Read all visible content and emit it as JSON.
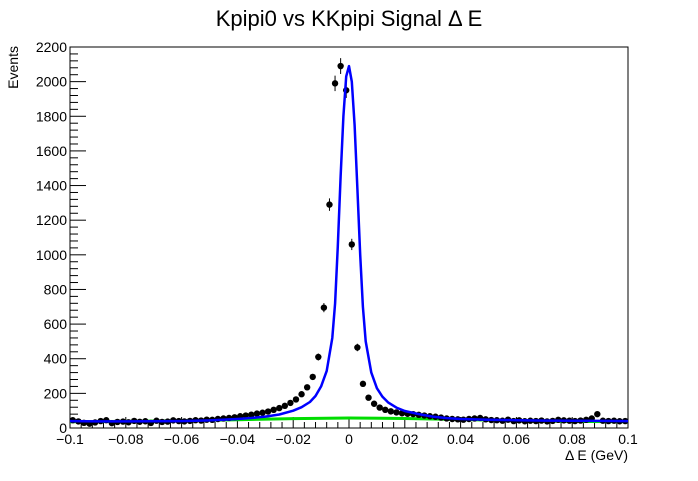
{
  "chart_data": {
    "type": "scatter",
    "title": "Kpipi0 vs KKpipi Signal Δ E",
    "xlabel": "Δ E (GeV)",
    "ylabel": "Events",
    "xlim": [
      -0.1,
      0.1
    ],
    "ylim": [
      0,
      2200
    ],
    "x_ticks": [
      -0.1,
      -0.08,
      -0.06,
      -0.04,
      -0.02,
      0,
      0.02,
      0.04,
      0.06,
      0.08,
      0.1
    ],
    "x_tick_labels": [
      "−0.1",
      "−0.08",
      "−0.06",
      "−0.04",
      "−0.02",
      "0",
      "0.02",
      "0.04",
      "0.06",
      "0.08",
      "0.1"
    ],
    "y_ticks": [
      0,
      200,
      400,
      600,
      800,
      1000,
      1200,
      1400,
      1600,
      1800,
      2000,
      2200
    ],
    "y_tick_labels": [
      "0",
      "200",
      "400",
      "600",
      "800",
      "1000",
      "1200",
      "1400",
      "1600",
      "1800",
      "2000",
      "2200"
    ],
    "grid": false,
    "legend": "none",
    "series": [
      {
        "kind": "points_with_errors",
        "color": "#000000",
        "x": [
          -0.099,
          -0.097,
          -0.095,
          -0.093,
          -0.091,
          -0.089,
          -0.087,
          -0.085,
          -0.083,
          -0.081,
          -0.079,
          -0.077,
          -0.075,
          -0.073,
          -0.071,
          -0.069,
          -0.067,
          -0.065,
          -0.063,
          -0.061,
          -0.059,
          -0.057,
          -0.055,
          -0.053,
          -0.051,
          -0.049,
          -0.047,
          -0.045,
          -0.043,
          -0.041,
          -0.039,
          -0.037,
          -0.035,
          -0.033,
          -0.031,
          -0.029,
          -0.027,
          -0.025,
          -0.023,
          -0.021,
          -0.019,
          -0.017,
          -0.015,
          -0.013,
          -0.011,
          -0.009,
          -0.007,
          -0.005,
          -0.003,
          -0.001,
          0.001,
          0.003,
          0.005,
          0.007,
          0.009,
          0.011,
          0.013,
          0.015,
          0.017,
          0.019,
          0.021,
          0.023,
          0.025,
          0.027,
          0.029,
          0.031,
          0.033,
          0.035,
          0.037,
          0.039,
          0.041,
          0.043,
          0.045,
          0.047,
          0.049,
          0.051,
          0.053,
          0.055,
          0.057,
          0.059,
          0.061,
          0.063,
          0.065,
          0.067,
          0.069,
          0.071,
          0.073,
          0.075,
          0.077,
          0.079,
          0.081,
          0.083,
          0.085,
          0.087,
          0.089,
          0.091,
          0.093,
          0.095,
          0.097,
          0.099
        ],
        "y": [
          45,
          38,
          30,
          25,
          32,
          40,
          45,
          28,
          35,
          37,
          33,
          41,
          36,
          39,
          29,
          42,
          35,
          37,
          44,
          40,
          38,
          41,
          45,
          43,
          48,
          47,
          52,
          55,
          58,
          62,
          68,
          72,
          77,
          83,
          88,
          95,
          105,
          115,
          128,
          145,
          165,
          195,
          235,
          295,
          410,
          695,
          1290,
          1990,
          2090,
          1950,
          1060,
          465,
          255,
          175,
          140,
          118,
          105,
          96,
          90,
          85,
          82,
          80,
          76,
          72,
          68,
          65,
          60,
          55,
          52,
          50,
          48,
          52,
          55,
          58,
          50,
          46,
          45,
          42,
          48,
          40,
          44,
          39,
          42,
          40,
          43,
          38,
          41,
          47,
          44,
          42,
          40,
          43,
          47,
          55,
          80,
          42,
          40,
          42,
          39,
          40
        ]
      },
      {
        "kind": "fit_curve",
        "color": "#0000ff",
        "x": [
          -0.1,
          -0.09,
          -0.08,
          -0.07,
          -0.06,
          -0.05,
          -0.04,
          -0.035,
          -0.03,
          -0.025,
          -0.02,
          -0.017,
          -0.014,
          -0.012,
          -0.01,
          -0.008,
          -0.006,
          -0.005,
          -0.004,
          -0.003,
          -0.002,
          -0.001,
          0,
          0.001,
          0.002,
          0.003,
          0.004,
          0.005,
          0.006,
          0.008,
          0.01,
          0.012,
          0.014,
          0.017,
          0.02,
          0.025,
          0.03,
          0.035,
          0.04,
          0.05,
          0.06,
          0.07,
          0.08,
          0.09,
          0.1
        ],
        "y": [
          40,
          38,
          38,
          39,
          40,
          44,
          52,
          58,
          66,
          78,
          100,
          120,
          150,
          185,
          240,
          330,
          520,
          720,
          1050,
          1450,
          1800,
          2030,
          2090,
          2000,
          1750,
          1380,
          1000,
          700,
          500,
          320,
          230,
          180,
          148,
          118,
          98,
          80,
          66,
          57,
          52,
          48,
          45,
          43,
          42,
          41,
          40
        ]
      },
      {
        "kind": "background_curve",
        "color": "#00dd00",
        "x": [
          -0.1,
          -0.08,
          -0.06,
          -0.04,
          -0.02,
          0,
          0.02,
          0.04,
          0.06,
          0.08,
          0.1
        ],
        "y": [
          36,
          38,
          42,
          48,
          54,
          58,
          55,
          49,
          43,
          38,
          36
        ]
      }
    ]
  }
}
